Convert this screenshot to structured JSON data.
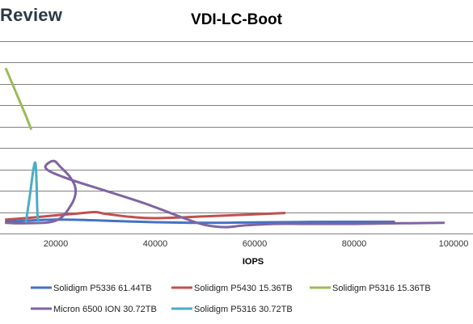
{
  "brand": "Review",
  "chart_data": {
    "type": "line",
    "title": "VDI-LC-Boot",
    "xlabel": "IOPS",
    "ylabel": "",
    "xlim": [
      10000,
      100000
    ],
    "ylim": [
      0,
      9.3
    ],
    "x_ticks": [
      20000,
      40000,
      60000,
      80000,
      100000
    ],
    "x_tick_labels": [
      "20000",
      "40000",
      "60000",
      "80000",
      "100000"
    ],
    "y_ticks": [
      0,
      1,
      2,
      3,
      4,
      5,
      6,
      7,
      8,
      9
    ],
    "grid": true,
    "legend_position": "bottom",
    "series": [
      {
        "name": "Solidigm P5336 61.44TB",
        "color": "#4472c4",
        "points": [
          [
            10000,
            0.55
          ],
          [
            20000,
            0.65
          ],
          [
            30000,
            0.6
          ],
          [
            40000,
            0.53
          ],
          [
            50000,
            0.5
          ],
          [
            60000,
            0.52
          ],
          [
            70000,
            0.54
          ],
          [
            80000,
            0.55
          ],
          [
            88000,
            0.55
          ]
        ]
      },
      {
        "name": "Solidigm P5430 15.36TB",
        "color": "#c0504d",
        "points": [
          [
            10000,
            0.65
          ],
          [
            15000,
            0.74
          ],
          [
            20000,
            0.85
          ],
          [
            25000,
            0.95
          ],
          [
            28000,
            1.0
          ],
          [
            30000,
            0.92
          ],
          [
            35000,
            0.78
          ],
          [
            40000,
            0.72
          ],
          [
            50000,
            0.8
          ],
          [
            60000,
            0.9
          ],
          [
            66000,
            0.96
          ]
        ]
      },
      {
        "name": "Solidigm P5316 15.36TB",
        "color": "#9bbb59",
        "points": [
          [
            10000,
            7.7
          ],
          [
            12000,
            6.6
          ],
          [
            14000,
            5.5
          ],
          [
            15000,
            4.9
          ]
        ]
      },
      {
        "name": "Micron 6500 ION 30.72TB",
        "color": "#8064a2",
        "points": [
          [
            10000,
            0.5
          ],
          [
            14000,
            0.48
          ],
          [
            20000,
            0.6
          ],
          [
            23000,
            1.3
          ],
          [
            24000,
            2.0
          ],
          [
            23000,
            2.6
          ],
          [
            21000,
            3.1
          ],
          [
            19500,
            3.4
          ],
          [
            18000,
            3.05
          ],
          [
            22000,
            2.6
          ],
          [
            30000,
            2.0
          ],
          [
            38000,
            1.4
          ],
          [
            46000,
            0.7
          ],
          [
            50000,
            0.4
          ],
          [
            54000,
            0.3
          ],
          [
            58000,
            0.38
          ],
          [
            64000,
            0.45
          ],
          [
            70000,
            0.45
          ],
          [
            80000,
            0.45
          ],
          [
            90000,
            0.48
          ],
          [
            98000,
            0.5
          ]
        ]
      },
      {
        "name": "Solidigm P5316 30.72TB",
        "color": "#4bacc6",
        "points": [
          [
            14000,
            0.55
          ],
          [
            14800,
            1.8
          ],
          [
            15500,
            3.0
          ],
          [
            15900,
            3.3
          ],
          [
            16100,
            2.6
          ],
          [
            16300,
            1.0
          ],
          [
            16500,
            0.55
          ]
        ]
      }
    ]
  }
}
